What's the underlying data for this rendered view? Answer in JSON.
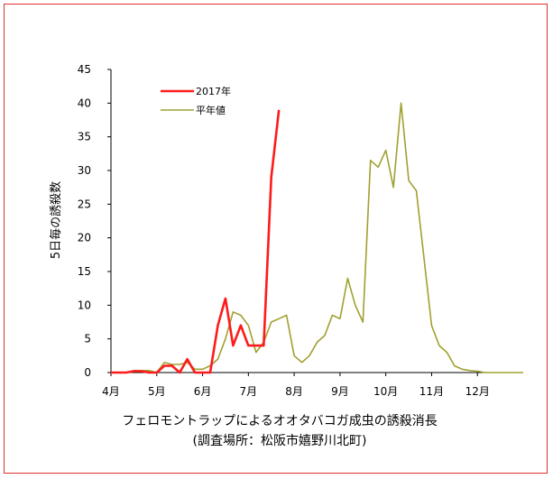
{
  "chart_data": {
    "type": "line",
    "title": "",
    "ylabel": "5日毎の誘殺数",
    "xlabel": "",
    "ylim": [
      0,
      45
    ],
    "yticks": [
      0,
      5,
      10,
      15,
      20,
      25,
      30,
      35,
      40,
      45
    ],
    "xlim": [
      0,
      54
    ],
    "xticks": [
      {
        "label": "4月",
        "x": 0
      },
      {
        "label": "5月",
        "x": 6
      },
      {
        "label": "6月",
        "x": 12
      },
      {
        "label": "7月",
        "x": 18
      },
      {
        "label": "8月",
        "x": 24
      },
      {
        "label": "9月",
        "x": 30
      },
      {
        "label": "10月",
        "x": 36
      },
      {
        "label": "11月",
        "x": 42
      },
      {
        "label": "12月",
        "x": 48
      }
    ],
    "legend_position": "top-left",
    "grid": false,
    "series": [
      {
        "name": "2017年",
        "color": "#ff1a1a",
        "x": [
          0,
          1,
          2,
          3,
          4,
          5,
          6,
          7,
          8,
          9,
          10,
          11,
          12,
          13,
          14,
          15,
          16,
          17,
          18,
          19,
          20,
          21,
          22,
          23,
          24
        ],
        "y": [
          0,
          0,
          0,
          0.2,
          0.2,
          0,
          0,
          1,
          1,
          0,
          2,
          0,
          0,
          0,
          7,
          11,
          4,
          7,
          4,
          4,
          4,
          29,
          39,
          null,
          null
        ]
      },
      {
        "name": "平年値",
        "color": "#a0a030",
        "x": [
          0,
          1,
          2,
          3,
          4,
          5,
          6,
          7,
          8,
          9,
          10,
          11,
          12,
          13,
          14,
          15,
          16,
          17,
          18,
          19,
          20,
          21,
          22,
          23,
          24,
          25,
          26,
          27,
          28,
          29,
          30,
          31,
          32,
          33,
          34,
          35,
          36,
          37,
          38,
          39,
          40,
          41,
          42,
          43,
          44,
          45,
          46,
          47,
          48,
          49,
          50,
          51,
          52,
          53,
          54
        ],
        "y": [
          0,
          0,
          0,
          0.3,
          0.3,
          0.3,
          0,
          1.5,
          1.2,
          1.2,
          1.5,
          0.5,
          0.5,
          1,
          2,
          5,
          9,
          8.5,
          7,
          3,
          4.5,
          7.5,
          8,
          8.5,
          2.5,
          1.5,
          2.5,
          4.5,
          5.5,
          8.5,
          8,
          14,
          10,
          7.5,
          31.5,
          30.5,
          33,
          27.5,
          40,
          28.5,
          27,
          17,
          7,
          4,
          3,
          1,
          0.5,
          0.3,
          0.2,
          0,
          0,
          0,
          0,
          0,
          0
        ]
      }
    ],
    "caption": [
      "フェロモントラップによるオオタバコガ成虫の誘殺消長",
      "(調査場所：松阪市嬉野川北町)"
    ]
  }
}
